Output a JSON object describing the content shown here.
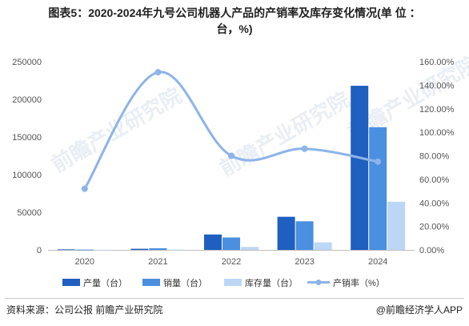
{
  "title_line1": "图表5：2020-2024年九号公司机器人产品的产销率及库存变化情况(单 位 ：",
  "title_line2": "台，%)",
  "source": "资料来源：公司公报 前瞻产业研究院",
  "brand": "@前瞻经济学人APP",
  "watermark": "前瞻产业研究院",
  "colors": {
    "production": "#1f5fbf",
    "sales": "#4a8fe0",
    "inventory": "#bcd7f5",
    "rate": "#8db4e8"
  },
  "chart_data": {
    "type": "bar",
    "categories": [
      "2020",
      "2021",
      "2022",
      "2023",
      "2024"
    ],
    "series": [
      {
        "name": "产量（台）",
        "type": "bar",
        "axis": "left",
        "values": [
          700,
          1500,
          20500,
          44000,
          218000
        ]
      },
      {
        "name": "销量（台）",
        "type": "bar",
        "axis": "left",
        "values": [
          400,
          2200,
          16500,
          38000,
          163000
        ]
      },
      {
        "name": "库存量（台）",
        "type": "bar",
        "axis": "left",
        "values": [
          200,
          400,
          4000,
          10000,
          64000
        ]
      },
      {
        "name": "产销率（%）",
        "type": "line",
        "axis": "right",
        "values": [
          52,
          151,
          80,
          86,
          75
        ]
      }
    ],
    "y_left": {
      "min": 0,
      "max": 250000,
      "ticks": [
        0,
        50000,
        100000,
        150000,
        200000,
        250000
      ]
    },
    "y_right": {
      "min": 0,
      "max": 160,
      "ticks": [
        0,
        20,
        40,
        60,
        80,
        100,
        120,
        140,
        160
      ],
      "tick_labels": [
        "0.00%",
        "20.00%",
        "40.00%",
        "60.00%",
        "80.00%",
        "100.00%",
        "120.00%",
        "140.00%",
        "160.00%"
      ]
    },
    "legend_position": "bottom",
    "grid": false
  }
}
